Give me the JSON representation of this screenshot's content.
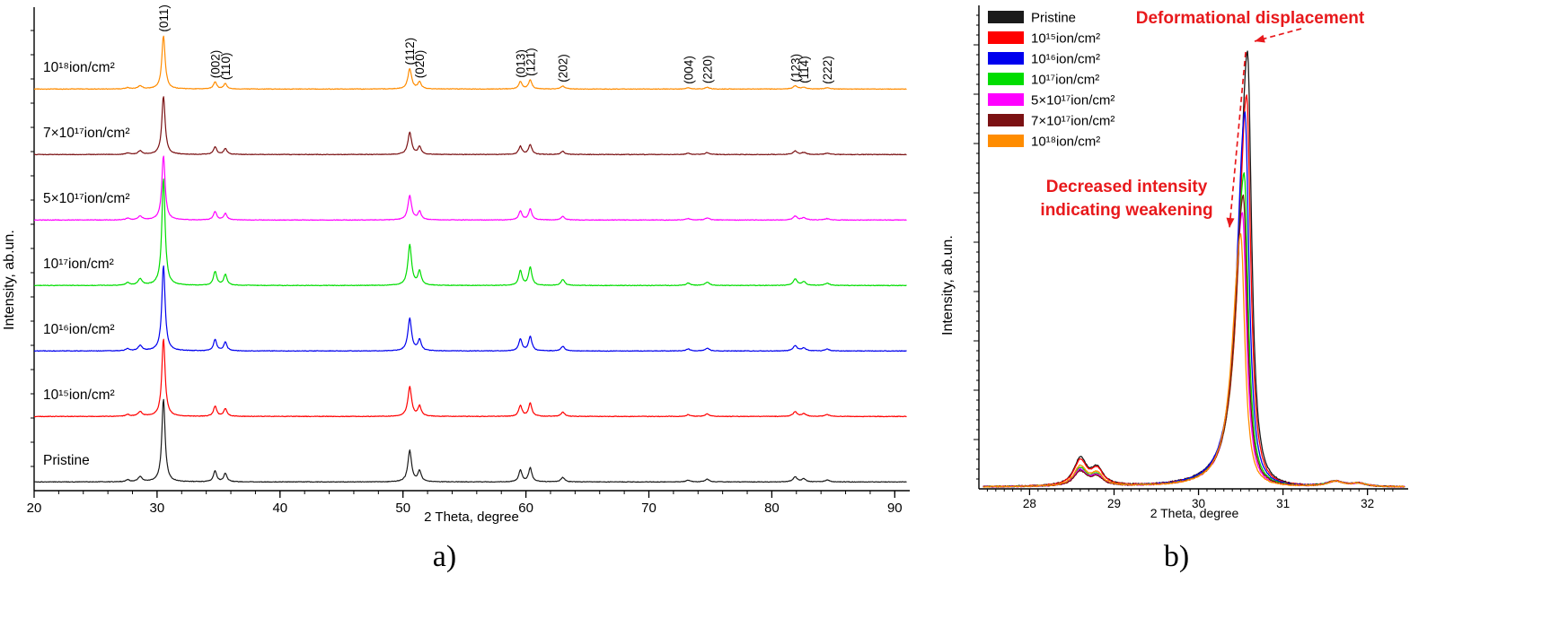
{
  "figure": {
    "background": "#ffffff",
    "caption_a": "a)",
    "caption_b": "b)"
  },
  "chart_data": [
    {
      "type": "line",
      "panel": "a",
      "description": "Stacked XRD patterns at increasing ion fluence, offset vertically",
      "xlabel": "2 Theta, degree",
      "ylabel": "Intensity, ab.un.",
      "xlim": [
        20,
        91
      ],
      "xticks": [
        20,
        30,
        40,
        50,
        60,
        70,
        80,
        90
      ],
      "y_tick_labels_shown": false,
      "series": [
        {
          "name": "Pristine",
          "color": "#1a1a1a",
          "scale": 0.85
        },
        {
          "name": "10¹⁵ion/cm²",
          "color": "#ff0000",
          "scale": 0.8
        },
        {
          "name": "10¹⁶ion/cm²",
          "color": "#0000ee",
          "scale": 0.88
        },
        {
          "name": "10¹⁷ion/cm²",
          "color": "#00dd00",
          "scale": 1.1
        },
        {
          "name": "5×10¹⁷ion/cm²",
          "color": "#ff00ff",
          "scale": 0.66
        },
        {
          "name": "7×10¹⁷ion/cm²",
          "color": "#7b1113",
          "scale": 0.6
        },
        {
          "name": "10¹⁸ion/cm²",
          "color": "#ff8c00",
          "scale": 0.55
        }
      ],
      "peaks": [
        {
          "two_theta": 27.6,
          "rel_intensity": 0.025,
          "hwhm": 0.18
        },
        {
          "two_theta": 28.62,
          "rel_intensity": 0.06,
          "hwhm": 0.2
        },
        {
          "two_theta": 30.52,
          "rel_intensity": 1.0,
          "hwhm": 0.16,
          "hkl": "(011)"
        },
        {
          "two_theta": 34.72,
          "rel_intensity": 0.13,
          "hwhm": 0.16,
          "hkl": "(002)"
        },
        {
          "two_theta": 35.55,
          "rel_intensity": 0.1,
          "hwhm": 0.16,
          "hkl": "(110)"
        },
        {
          "two_theta": 50.55,
          "rel_intensity": 0.38,
          "hwhm": 0.18,
          "hkl": "(112)"
        },
        {
          "two_theta": 51.35,
          "rel_intensity": 0.13,
          "hwhm": 0.16,
          "hkl": "(020)"
        },
        {
          "two_theta": 59.55,
          "rel_intensity": 0.14,
          "hwhm": 0.16,
          "hkl": "(013)"
        },
        {
          "two_theta": 60.35,
          "rel_intensity": 0.17,
          "hwhm": 0.16,
          "hkl": "(121)"
        },
        {
          "two_theta": 63.0,
          "rel_intensity": 0.055,
          "hwhm": 0.18,
          "hkl": "(202)"
        },
        {
          "two_theta": 73.2,
          "rel_intensity": 0.022,
          "hwhm": 0.2,
          "hkl": "(004)"
        },
        {
          "two_theta": 74.75,
          "rel_intensity": 0.032,
          "hwhm": 0.2,
          "hkl": "(220)"
        },
        {
          "two_theta": 81.9,
          "rel_intensity": 0.06,
          "hwhm": 0.2,
          "hkl": "(123)"
        },
        {
          "two_theta": 82.6,
          "rel_intensity": 0.035,
          "hwhm": 0.2,
          "hkl": "(114)"
        },
        {
          "two_theta": 84.5,
          "rel_intensity": 0.022,
          "hwhm": 0.22,
          "hkl": "(222)"
        }
      ]
    },
    {
      "type": "line",
      "panel": "b",
      "description": "Zoom of main (011) reflection showing peak shift and intensity decrease with fluence",
      "xlabel": "2 Theta, degree",
      "ylabel": "Intensity, ab.un.",
      "xlim": [
        27.4,
        32.45
      ],
      "xticks": [
        28,
        29,
        30,
        31,
        32
      ],
      "legend_position": "top-left",
      "annotation_color": "#e8191c",
      "series": [
        {
          "name": "Pristine",
          "color": "#1a1a1a",
          "peak_two_theta": 30.58,
          "peak_height": 1.0,
          "bump_height": 0.062
        },
        {
          "name": "10¹⁵ion/cm²",
          "color": "#ff0000",
          "peak_two_theta": 30.57,
          "peak_height": 0.9,
          "bump_height": 0.058
        },
        {
          "name": "10¹⁶ion/cm²",
          "color": "#0000ee",
          "peak_two_theta": 30.55,
          "peak_height": 0.86,
          "bump_height": 0.035
        },
        {
          "name": "10¹⁷ion/cm²",
          "color": "#00dd00",
          "peak_two_theta": 30.54,
          "peak_height": 0.72,
          "bump_height": 0.04
        },
        {
          "name": "5×10¹⁷ion/cm²",
          "color": "#ff00ff",
          "peak_two_theta": 30.52,
          "peak_height": 0.63,
          "bump_height": 0.037
        },
        {
          "name": "7×10¹⁷ion/cm²",
          "color": "#7b1113",
          "peak_two_theta": 30.53,
          "peak_height": 0.67,
          "bump_height": 0.033
        },
        {
          "name": "10¹⁸ion/cm²",
          "color": "#ff8c00",
          "peak_two_theta": 30.5,
          "peak_height": 0.58,
          "bump_height": 0.045
        }
      ],
      "annotations": [
        {
          "id": "deformational-displacement",
          "lines": [
            "Deformational displacement"
          ]
        },
        {
          "id": "decreased-intensity",
          "lines": [
            "Decreased intensity",
            "indicating weakening"
          ]
        }
      ]
    }
  ]
}
